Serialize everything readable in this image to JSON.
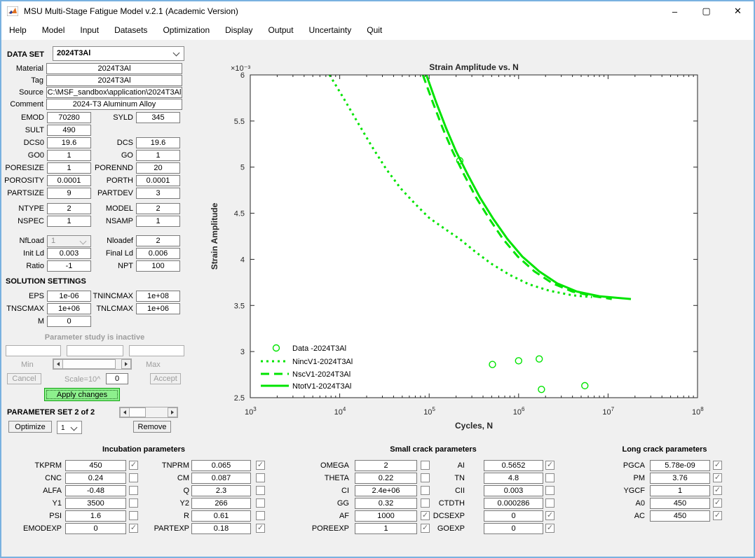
{
  "window": {
    "title": "MSU Multi-Stage Fatigue Model v.2.1 (Academic Version)",
    "controls": {
      "minimize": "–",
      "maximize": "▢",
      "close": "✕"
    }
  },
  "menu": {
    "items": [
      "Help",
      "Model",
      "Input",
      "Datasets",
      "Optimization",
      "Display",
      "Output",
      "Uncertainty",
      "Quit"
    ]
  },
  "colors": {
    "series_green": "#00e400",
    "apply_button_bg": "#8df08d",
    "window_border": "#79b1e0",
    "axis_color": "#262626"
  },
  "left_panel": {
    "dataset": {
      "label": "DATA SET",
      "value": "2024T3Al"
    },
    "info_rows": [
      {
        "label": "Material",
        "value": "2024T3Al"
      },
      {
        "label": "Tag",
        "value": "2024T3Al"
      },
      {
        "label": "Source",
        "value": "C:\\MSF_sandbox\\application\\2024T3Al"
      },
      {
        "label": "Comment",
        "value": "2024-T3 Aluminum Alloy"
      }
    ],
    "material_rows": [
      {
        "l": {
          "label": "EMOD",
          "value": "70280"
        },
        "r": {
          "label": "SYLD",
          "value": "345"
        }
      },
      {
        "l": {
          "label": "SULT",
          "value": "490"
        },
        "r": null
      },
      {
        "l": {
          "label": "DCS0",
          "value": "19.6"
        },
        "r": {
          "label": "DCS",
          "value": "19.6"
        }
      },
      {
        "l": {
          "label": "GO0",
          "value": "1"
        },
        "r": {
          "label": "GO",
          "value": "1"
        }
      },
      {
        "l": {
          "label": "PORESIZE",
          "value": "1"
        },
        "r": {
          "label": "PORENND",
          "value": "20"
        }
      },
      {
        "l": {
          "label": "POROSITY",
          "value": "0.0001"
        },
        "r": {
          "label": "PORTH",
          "value": "0.0001"
        }
      },
      {
        "l": {
          "label": "PARTSIZE",
          "value": "9"
        },
        "r": {
          "label": "PARTDEV",
          "value": "3"
        }
      }
    ],
    "model_rows": [
      {
        "l": {
          "label": "NTYPE",
          "value": "2"
        },
        "r": {
          "label": "MODEL",
          "value": "2"
        }
      },
      {
        "l": {
          "label": "NSPEC",
          "value": "1"
        },
        "r": {
          "label": "NSAMP",
          "value": "1"
        }
      }
    ],
    "load_rows": [
      {
        "l": {
          "label": "NfLoad",
          "value": "1",
          "type": "combo",
          "disabled": true
        },
        "r": {
          "label": "Nloadef",
          "value": "2"
        }
      },
      {
        "l": {
          "label": "Init Ld",
          "value": "0.003"
        },
        "r": {
          "label": "Final Ld",
          "value": "0.006"
        }
      },
      {
        "l": {
          "label": "Ratio",
          "value": "-1"
        },
        "r": {
          "label": "NPT",
          "value": "100"
        }
      }
    ],
    "solution_title": "SOLUTION SETTINGS",
    "solution_rows": [
      {
        "l": {
          "label": "EPS",
          "value": "1e-06"
        },
        "r": {
          "label": "TNINCMAX",
          "value": "1e+08"
        }
      },
      {
        "l": {
          "label": "TNSCMAX",
          "value": "1e+06"
        },
        "r": {
          "label": "TNLCMAX",
          "value": "1e+06"
        }
      },
      {
        "l": {
          "label": "M",
          "value": "0"
        },
        "r": null
      }
    ],
    "param_study": {
      "status": "Parameter study is inactive",
      "min_label": "Min",
      "max_label": "Max",
      "cancel_label": "Cancel",
      "scale_label": "Scale=10^",
      "scale_value": "0",
      "accept_label": "Accept",
      "apply_label": "Apply changes"
    },
    "param_set": {
      "label": "PARAMETER SET 2 of 2",
      "optimize_label": "Optimize",
      "selector_value": "1",
      "remove_label": "Remove"
    }
  },
  "bottom_panels": [
    {
      "title": "Incubation parameters",
      "rows": [
        {
          "l": {
            "label": "TKPRM",
            "value": "450",
            "checked": true
          },
          "r": {
            "label": "TNPRM",
            "value": "0.065",
            "checked": true
          }
        },
        {
          "l": {
            "label": "CNC",
            "value": "0.24",
            "checked": false
          },
          "r": {
            "label": "CM",
            "value": "0.087",
            "checked": false
          }
        },
        {
          "l": {
            "label": "ALFA",
            "value": "-0.48",
            "checked": false
          },
          "r": {
            "label": "Q",
            "value": "2.3",
            "checked": false
          }
        },
        {
          "l": {
            "label": "Y1",
            "value": "3500",
            "checked": false
          },
          "r": {
            "label": "Y2",
            "value": "266",
            "checked": false
          }
        },
        {
          "l": {
            "label": "PSI",
            "value": "1.6",
            "checked": false
          },
          "r": {
            "label": "R",
            "value": "0.61",
            "checked": false
          }
        },
        {
          "l": {
            "label": "EMODEXP",
            "value": "0",
            "checked": true
          },
          "r": {
            "label": "PARTEXP",
            "value": "0.18",
            "checked": true
          }
        }
      ]
    },
    {
      "title": "Small crack parameters",
      "rows": [
        {
          "l": {
            "label": "OMEGA",
            "value": "2",
            "checked": false
          },
          "r": {
            "label": "AI",
            "value": "0.5652",
            "checked": true
          }
        },
        {
          "l": {
            "label": "THETA",
            "value": "0.22",
            "checked": false
          },
          "r": {
            "label": "TN",
            "value": "4.8",
            "checked": false
          }
        },
        {
          "l": {
            "label": "CI",
            "value": "2.4e+06",
            "checked": false
          },
          "r": {
            "label": "CII",
            "value": "0.003",
            "checked": false
          }
        },
        {
          "l": {
            "label": "GG",
            "value": "0.32",
            "checked": false
          },
          "r": {
            "label": "CTDTH",
            "value": "0.000286",
            "checked": false
          }
        },
        {
          "l": {
            "label": "AF",
            "value": "1000",
            "checked": true
          },
          "r": {
            "label": "DCSEXP",
            "value": "0",
            "checked": true
          }
        },
        {
          "l": {
            "label": "POREEXP",
            "value": "1",
            "checked": true
          },
          "r": {
            "label": "GOEXP",
            "value": "0",
            "checked": true
          }
        }
      ]
    },
    {
      "title": "Long crack parameters",
      "rows": [
        {
          "l": {
            "label": "PGCA",
            "value": "5.78e-09",
            "checked": true
          },
          "r": null
        },
        {
          "l": {
            "label": "PM",
            "value": "3.76",
            "checked": true
          },
          "r": null
        },
        {
          "l": {
            "label": "YGCF",
            "value": "1",
            "checked": true
          },
          "r": null
        },
        {
          "l": {
            "label": "A0",
            "value": "450",
            "checked": true
          },
          "r": null
        },
        {
          "l": {
            "label": "AC",
            "value": "450",
            "checked": true
          },
          "r": null
        }
      ]
    }
  ],
  "chart_data": {
    "type": "line",
    "title": "Strain Amplitude vs. N",
    "xlabel": "Cycles, N",
    "ylabel": "Strain Amplitude",
    "x_scale": "log",
    "xlim": [
      1000,
      100000000
    ],
    "ylim_milli": [
      2.5,
      6
    ],
    "y_multiplier_label": "×10⁻³",
    "y_ticks_milli": [
      2.5,
      3,
      3.5,
      4,
      4.5,
      5,
      5.5,
      6
    ],
    "x_tick_exponents": [
      3,
      4,
      5,
      6,
      7,
      8
    ],
    "grid": false,
    "legend_position": "lower-left-inside",
    "series": [
      {
        "name": "Data -2024T3Al",
        "style": "scatter",
        "marker": "circle",
        "color": "#00e400",
        "points": [
          [
            220000,
            5.07
          ],
          [
            510000,
            2.86
          ],
          [
            1000000,
            2.9
          ],
          [
            1700000,
            2.92
          ],
          [
            1800000,
            2.59
          ],
          [
            5500000,
            2.63
          ]
        ]
      },
      {
        "name": "NincV1-2024T3Al",
        "style": "dotted",
        "color": "#00e400",
        "points": [
          [
            7700,
            6.0
          ],
          [
            11000,
            5.75
          ],
          [
            16000,
            5.48
          ],
          [
            23000,
            5.22
          ],
          [
            33000,
            4.98
          ],
          [
            48000,
            4.77
          ],
          [
            70000,
            4.6
          ],
          [
            100000,
            4.45
          ],
          [
            150000,
            4.33
          ],
          [
            220000,
            4.22
          ],
          [
            330000,
            4.08
          ],
          [
            500000,
            3.95
          ],
          [
            800000,
            3.83
          ],
          [
            1300000,
            3.73
          ],
          [
            2200000,
            3.66
          ],
          [
            4000000,
            3.61
          ],
          [
            6600000,
            3.59
          ]
        ]
      },
      {
        "name": "NscV1-2024T3Al",
        "style": "dashed",
        "color": "#00e400",
        "points": [
          [
            85000,
            6.0
          ],
          [
            110000,
            5.7
          ],
          [
            142000,
            5.42
          ],
          [
            183000,
            5.17
          ],
          [
            245000,
            4.92
          ],
          [
            335000,
            4.67
          ],
          [
            470000,
            4.44
          ],
          [
            670000,
            4.22
          ],
          [
            980000,
            4.03
          ],
          [
            1500000,
            3.87
          ],
          [
            2400000,
            3.74
          ],
          [
            4000000,
            3.65
          ],
          [
            7000000,
            3.6
          ],
          [
            11000000,
            3.57
          ]
        ]
      },
      {
        "name": "NtotV1-2024T3Al",
        "style": "solid",
        "color": "#00e400",
        "points": [
          [
            93000,
            6.0
          ],
          [
            120000,
            5.7
          ],
          [
            155000,
            5.42
          ],
          [
            200000,
            5.17
          ],
          [
            270000,
            4.92
          ],
          [
            370000,
            4.67
          ],
          [
            520000,
            4.44
          ],
          [
            750000,
            4.22
          ],
          [
            1100000,
            4.03
          ],
          [
            1700000,
            3.87
          ],
          [
            2700000,
            3.74
          ],
          [
            4500000,
            3.65
          ],
          [
            8000000,
            3.6
          ],
          [
            18000000,
            3.57
          ]
        ]
      }
    ]
  }
}
